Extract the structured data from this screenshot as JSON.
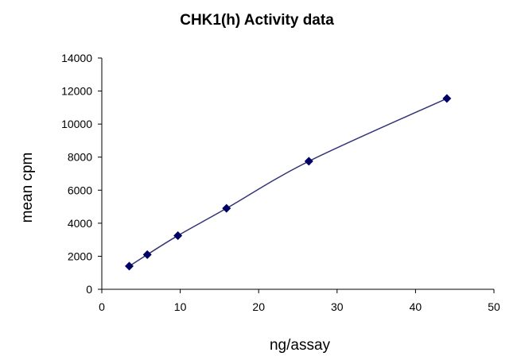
{
  "chart_data": {
    "type": "line",
    "title": "CHK1(h) Activity data",
    "xlabel": "ng/assay",
    "ylabel": "mean cpm",
    "xlim": [
      0,
      50
    ],
    "ylim": [
      0,
      14000
    ],
    "x_ticks": [
      "0",
      "10",
      "20",
      "30",
      "40",
      "50"
    ],
    "y_ticks": [
      "0",
      "2000",
      "4000",
      "6000",
      "8000",
      "10000",
      "12000",
      "14000"
    ],
    "grid": false,
    "legend": false,
    "series": [
      {
        "x": [
          3.5,
          5.8,
          9.7,
          15.9,
          26.4,
          44.0
        ],
        "y": [
          1400,
          2100,
          3250,
          4900,
          7750,
          11550
        ],
        "marker": "diamond",
        "color": "#000066",
        "line_color": "#33337a"
      }
    ]
  }
}
